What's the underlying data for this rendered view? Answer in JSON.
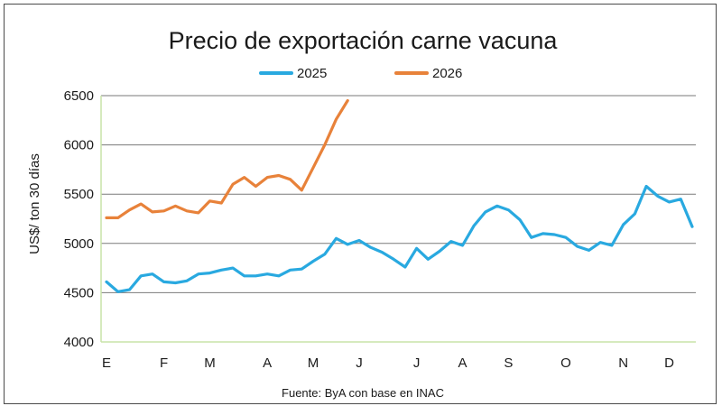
{
  "chart_data": {
    "type": "line",
    "title": "Precio de exportación carne vacuna",
    "ylabel": "US$/ ton 30 días",
    "xlabel": "",
    "source": "Fuente: ByA con base en INAC",
    "ylim": [
      4000,
      6500
    ],
    "yticks": [
      4000,
      4500,
      5000,
      5500,
      6000,
      6500
    ],
    "grid": true,
    "legend_position": "top-center",
    "x_range": [
      1,
      52
    ],
    "month_labels": [
      {
        "label": "E",
        "week": 1
      },
      {
        "label": "F",
        "week": 6
      },
      {
        "label": "M",
        "week": 10
      },
      {
        "label": "A",
        "week": 15
      },
      {
        "label": "M",
        "week": 19
      },
      {
        "label": "J",
        "week": 23
      },
      {
        "label": "J",
        "week": 28
      },
      {
        "label": "A",
        "week": 32
      },
      {
        "label": "S",
        "week": 36
      },
      {
        "label": "O",
        "week": 41
      },
      {
        "label": "N",
        "week": 46
      },
      {
        "label": "D",
        "week": 50
      }
    ],
    "series": [
      {
        "name": "2025",
        "color": "#29a9e0",
        "x": [
          1,
          2,
          3,
          4,
          5,
          6,
          7,
          8,
          9,
          10,
          11,
          12,
          13,
          14,
          15,
          16,
          17,
          18,
          19,
          20,
          21,
          22,
          23,
          24,
          25,
          26,
          27,
          28,
          29,
          30,
          31,
          32,
          33,
          34,
          35,
          36,
          37,
          38,
          39,
          40,
          41,
          42,
          43,
          44,
          45,
          46,
          47,
          48,
          49,
          50,
          51,
          52
        ],
        "values": [
          4610,
          4510,
          4530,
          4670,
          4690,
          4610,
          4600,
          4620,
          4690,
          4700,
          4730,
          4750,
          4670,
          4670,
          4690,
          4670,
          4730,
          4740,
          4820,
          4890,
          5050,
          4990,
          5030,
          4960,
          4910,
          4840,
          4760,
          4950,
          4840,
          4920,
          5020,
          4980,
          5180,
          5320,
          5380,
          5340,
          5240,
          5060,
          5100,
          5090,
          5060,
          4970,
          4930,
          5010,
          4980,
          5190,
          5300,
          5580,
          5480,
          5420,
          5450,
          5170
        ]
      },
      {
        "name": "2026",
        "color": "#e8823a",
        "x": [
          1,
          2,
          3,
          4,
          5,
          6,
          7,
          8,
          9,
          10,
          11,
          12,
          13,
          14,
          15,
          16,
          17,
          18,
          19,
          20,
          21,
          22
        ],
        "values": [
          5260,
          5260,
          5340,
          5400,
          5320,
          5330,
          5380,
          5330,
          5310,
          5430,
          5410,
          5600,
          5670,
          5580,
          5670,
          5690,
          5650,
          5540,
          5770,
          6000,
          6260,
          6450
        ]
      }
    ]
  }
}
